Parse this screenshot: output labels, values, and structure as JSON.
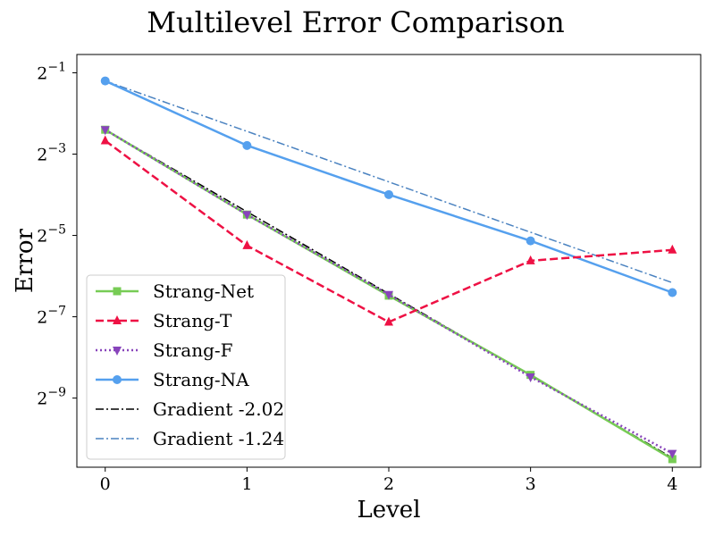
{
  "chart_data": {
    "type": "line",
    "title": "Multilevel Error Comparison",
    "xlabel": "Level",
    "ylabel": "Error",
    "x": [
      0,
      1,
      2,
      3,
      4
    ],
    "xlim": [
      -0.2,
      4.2
    ],
    "xticks": [
      0,
      1,
      2,
      3,
      4
    ],
    "yscale": "log2",
    "ylim_log2": [
      -10.7,
      -0.55
    ],
    "yticks": [
      {
        "exp": -1,
        "base": "2",
        "sup": "−1"
      },
      {
        "exp": -3,
        "base": "2",
        "sup": "−3"
      },
      {
        "exp": -5,
        "base": "2",
        "sup": "−5"
      },
      {
        "exp": -7,
        "base": "2",
        "sup": "−7"
      },
      {
        "exp": -9,
        "base": "2",
        "sup": "−9"
      }
    ],
    "grid": false,
    "legend": {
      "placement": "lower-left"
    },
    "series": [
      {
        "name": "Strang-Net",
        "color": "#77cc55",
        "dash": "solid",
        "marker": "square",
        "values": [
          0.1895,
          0.0446,
          0.0112,
          0.0029,
          0.00069
        ]
      },
      {
        "name": "Strang-T",
        "color": "#ee1144",
        "dash": "dashed",
        "marker": "triangle-up",
        "values": [
          0.157,
          0.0263,
          0.00714,
          0.0203,
          0.0244
        ]
      },
      {
        "name": "Strang-F",
        "color": "#8844bb",
        "dash": "dotted",
        "marker": "triangle-down",
        "values": [
          0.1895,
          0.0446,
          0.0114,
          0.0028,
          0.00076
        ]
      },
      {
        "name": "Strang-NA",
        "color": "#55a0ee",
        "dash": "solid",
        "marker": "circle",
        "values": [
          0.4353,
          0.1448,
          0.0627,
          0.0285,
          0.0118
        ]
      },
      {
        "name": "Gradient -2.02",
        "color": "#000000",
        "dash": "dashdot",
        "marker": "none",
        "values": [
          0.1895,
          0.0468,
          0.01156,
          0.00286,
          0.000706
        ]
      },
      {
        "name": "Gradient -1.24",
        "color": "#4a82c0",
        "dash": "dashdot",
        "marker": "none",
        "values": [
          0.4353,
          0.1842,
          0.0779,
          0.033,
          0.01396
        ]
      }
    ]
  }
}
